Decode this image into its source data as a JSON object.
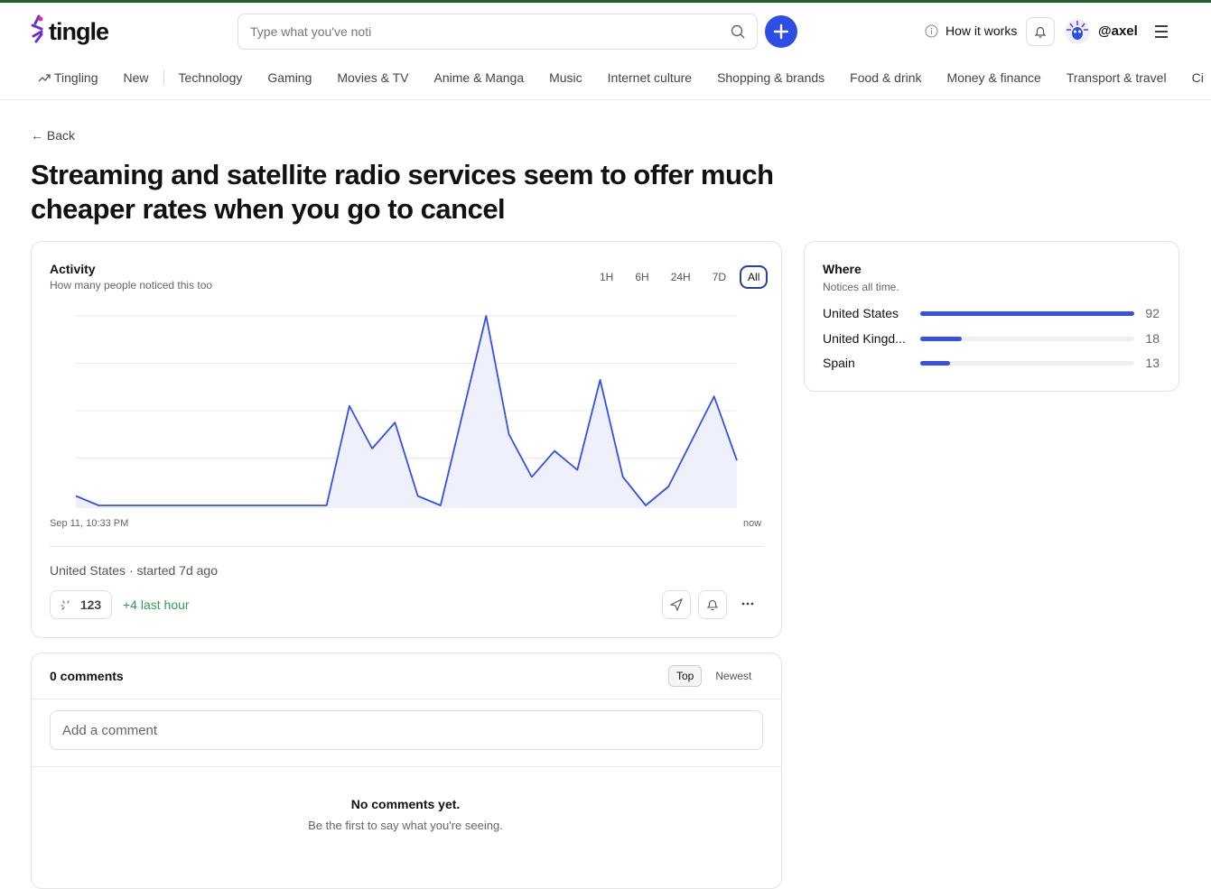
{
  "header": {
    "logo": "tingle",
    "search_placeholder": "Type what you've noti",
    "how_it_works": "How it works",
    "user": "@axel"
  },
  "nav": [
    "Tingling",
    "New",
    "Technology",
    "Gaming",
    "Movies & TV",
    "Anime & Manga",
    "Music",
    "Internet culture",
    "Shopping & brands",
    "Food & drink",
    "Money & finance",
    "Transport & travel",
    "Ci"
  ],
  "back": "← Back",
  "title": "Streaming and satellite radio services seem to offer much cheaper rates when you go to cancel",
  "activity": {
    "title": "Activity",
    "subtitle": "How many people noticed this too",
    "ranges": [
      "1H",
      "6H",
      "24H",
      "7D",
      "All"
    ],
    "selected_range": "All",
    "chart": {
      "type": "line",
      "color": "#3550e6",
      "fill": "#eef0fc",
      "values": [
        0.4,
        0,
        0,
        0,
        0,
        0,
        0,
        0,
        0,
        0,
        0,
        0,
        4.2,
        2.4,
        3.5,
        0.4,
        0,
        4,
        8,
        3,
        1.2,
        2.3,
        1.5,
        5.3,
        1.2,
        0,
        0.8,
        2.7,
        4.6,
        1.9
      ],
      "ylim": [
        0,
        8
      ],
      "grid": [
        0,
        2,
        4,
        6,
        8
      ],
      "x_start": "Sep 11, 10:33 PM",
      "x_end": "now"
    },
    "location_line": "United States · started 7d ago",
    "count": 123,
    "last_hour": "+4 last hour"
  },
  "where": {
    "title": "Where",
    "subtitle": "Notices all time.",
    "color": "#3550e6",
    "rows": [
      {
        "name": "United States",
        "value": 92
      },
      {
        "name": "United Kingd...",
        "value": 18
      },
      {
        "name": "Spain",
        "value": 13
      }
    ]
  },
  "comments": {
    "count_label": "0 comments",
    "sorts": [
      "Top",
      "Newest"
    ],
    "selected_sort": "Top",
    "placeholder": "Add a comment",
    "empty_title": "No comments yet.",
    "empty_text": "Be the first to say what you're seeing."
  }
}
